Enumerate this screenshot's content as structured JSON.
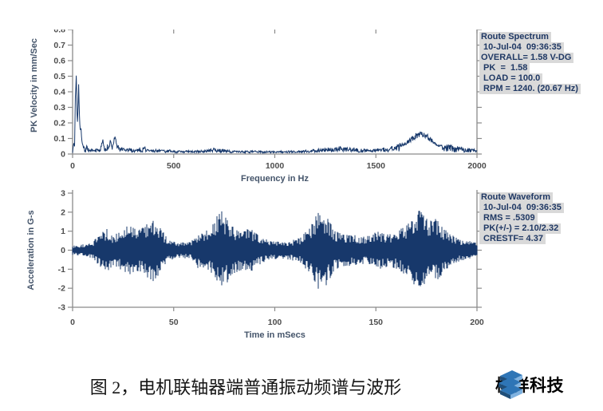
{
  "colors": {
    "line": "#17386b",
    "axis": "#8a8a8a",
    "tick_text": "#4d4d4d",
    "title_text": "#44546a",
    "legend_text": "#1f3864",
    "legend_bg": "#d9d9d9",
    "logo_dark": "#1f4e79",
    "logo_mid": "#2e75b6"
  },
  "legend_spectrum": {
    "lines": [
      "Route Spectrum",
      " 10-Jul-04  09:36:35",
      "OVERALL= 1.58 V-DG",
      " PK  =  1.58",
      " LOAD = 100.0",
      " RPM = 1240. (20.67 Hz)"
    ]
  },
  "legend_waveform": {
    "lines": [
      "Route Waveform",
      " 10-Jul-04  09:36:35",
      " RMS = .5309",
      " PK(+/-) = 2.10/2.32",
      " CRESTF= 4.37"
    ]
  },
  "caption": "图 2，电机联轴器端普通振动频谱与波形",
  "logo_text": "樽祥科技",
  "chart_data": [
    {
      "type": "line",
      "title": "Route Spectrum",
      "xlabel": "Frequency in Hz",
      "ylabel": "PK Velocity in mm/Sec",
      "xlim": [
        0,
        2000
      ],
      "ylim": [
        0,
        0.8
      ],
      "xticks": [
        0,
        500,
        1000,
        1500,
        2000
      ],
      "xtick_labels": [
        "0",
        "500",
        "1000",
        "1500",
        "2000"
      ],
      "yticks": [
        0,
        0.1,
        0.2,
        0.3,
        0.4,
        0.5,
        0.6,
        0.7,
        0.8
      ],
      "ytick_labels": [
        "0",
        "0.1",
        "0.2",
        "0.3",
        "0.4",
        "0.5",
        "0.6",
        "0.7",
        "0.8"
      ],
      "grid": false,
      "legend_position": "outside-right",
      "envelope_points": [
        [
          0,
          0.02
        ],
        [
          6,
          0.08
        ],
        [
          10,
          0.06
        ],
        [
          14,
          0.38
        ],
        [
          18,
          0.55
        ],
        [
          23,
          0.2
        ],
        [
          27,
          0.3
        ],
        [
          30,
          0.47
        ],
        [
          34,
          0.25
        ],
        [
          38,
          0.16
        ],
        [
          42,
          0.18
        ],
        [
          47,
          0.08
        ],
        [
          52,
          0.05
        ],
        [
          58,
          0.04
        ],
        [
          64,
          0.03
        ],
        [
          70,
          0.06
        ],
        [
          80,
          0.03
        ],
        [
          90,
          0.03
        ],
        [
          105,
          0.025
        ],
        [
          120,
          0.035
        ],
        [
          132,
          0.03
        ],
        [
          140,
          0.05
        ],
        [
          150,
          0.09
        ],
        [
          158,
          0.04
        ],
        [
          166,
          0.05
        ],
        [
          175,
          0.06
        ],
        [
          182,
          0.05
        ],
        [
          187,
          0.1
        ],
        [
          194,
          0.05
        ],
        [
          200,
          0.06
        ],
        [
          210,
          0.13
        ],
        [
          218,
          0.06
        ],
        [
          226,
          0.05
        ],
        [
          235,
          0.04
        ],
        [
          245,
          0.04
        ],
        [
          258,
          0.03
        ],
        [
          270,
          0.035
        ],
        [
          285,
          0.035
        ],
        [
          300,
          0.03
        ],
        [
          315,
          0.03
        ],
        [
          330,
          0.04
        ],
        [
          342,
          0.03
        ],
        [
          355,
          0.05
        ],
        [
          368,
          0.03
        ],
        [
          380,
          0.03
        ],
        [
          395,
          0.025
        ],
        [
          410,
          0.03
        ],
        [
          430,
          0.03
        ],
        [
          455,
          0.025
        ],
        [
          480,
          0.025
        ],
        [
          510,
          0.02
        ],
        [
          540,
          0.02
        ],
        [
          570,
          0.02
        ],
        [
          600,
          0.02
        ],
        [
          630,
          0.022
        ],
        [
          660,
          0.025
        ],
        [
          700,
          0.035
        ],
        [
          720,
          0.03
        ],
        [
          740,
          0.03
        ],
        [
          770,
          0.025
        ],
        [
          800,
          0.02
        ],
        [
          850,
          0.018
        ],
        [
          900,
          0.02
        ],
        [
          950,
          0.018
        ],
        [
          1000,
          0.018
        ],
        [
          1050,
          0.018
        ],
        [
          1100,
          0.02
        ],
        [
          1150,
          0.022
        ],
        [
          1200,
          0.03
        ],
        [
          1230,
          0.035
        ],
        [
          1260,
          0.04
        ],
        [
          1290,
          0.035
        ],
        [
          1320,
          0.045
        ],
        [
          1350,
          0.04
        ],
        [
          1380,
          0.04
        ],
        [
          1420,
          0.03
        ],
        [
          1450,
          0.03
        ],
        [
          1490,
          0.03
        ],
        [
          1520,
          0.035
        ],
        [
          1560,
          0.04
        ],
        [
          1600,
          0.05
        ],
        [
          1640,
          0.07
        ],
        [
          1670,
          0.1
        ],
        [
          1700,
          0.13
        ],
        [
          1720,
          0.15
        ],
        [
          1740,
          0.14
        ],
        [
          1760,
          0.12
        ],
        [
          1780,
          0.09
        ],
        [
          1800,
          0.07
        ],
        [
          1830,
          0.055
        ],
        [
          1860,
          0.05
        ],
        [
          1890,
          0.04
        ],
        [
          1920,
          0.04
        ],
        [
          1950,
          0.035
        ],
        [
          1975,
          0.03
        ],
        [
          2000,
          0.03
        ]
      ],
      "noise_floor": 0.006,
      "broadband_region": [
        1580,
        1980
      ],
      "seed": 7
    },
    {
      "type": "line",
      "title": "Route Waveform",
      "xlabel": "Time in mSecs",
      "ylabel": "Acceleration in G-s",
      "xlim": [
        0,
        200
      ],
      "ylim": [
        -3,
        3
      ],
      "xticks": [
        0,
        50,
        100,
        150,
        200
      ],
      "xtick_labels": [
        "0",
        "50",
        "100",
        "150",
        "200"
      ],
      "yticks": [
        -3,
        -2,
        -1,
        0,
        1,
        2,
        3
      ],
      "ytick_labels": [
        "-3",
        "-2",
        "-1",
        "0",
        "1",
        "2",
        "3"
      ],
      "grid": false,
      "legend_position": "outside-right",
      "envelope_points": [
        [
          0,
          0.25
        ],
        [
          5,
          0.3
        ],
        [
          10,
          0.45
        ],
        [
          14,
          0.9
        ],
        [
          17,
          1.15
        ],
        [
          20,
          0.8
        ],
        [
          24,
          1.0
        ],
        [
          28,
          1.35
        ],
        [
          32,
          1.1
        ],
        [
          36,
          1.4
        ],
        [
          40,
          1.65
        ],
        [
          44,
          1.1
        ],
        [
          48,
          0.5
        ],
        [
          53,
          0.4
        ],
        [
          58,
          0.45
        ],
        [
          62,
          0.9
        ],
        [
          66,
          1.0
        ],
        [
          70,
          1.5
        ],
        [
          73,
          2.2
        ],
        [
          76,
          1.7
        ],
        [
          80,
          1.2
        ],
        [
          84,
          1.05
        ],
        [
          88,
          1.15
        ],
        [
          92,
          0.8
        ],
        [
          97,
          0.5
        ],
        [
          103,
          0.45
        ],
        [
          108,
          0.5
        ],
        [
          113,
          0.7
        ],
        [
          118,
          1.3
        ],
        [
          122,
          2.2
        ],
        [
          126,
          1.7
        ],
        [
          130,
          1.0
        ],
        [
          135,
          0.85
        ],
        [
          140,
          0.8
        ],
        [
          145,
          0.7
        ],
        [
          150,
          1.05
        ],
        [
          154,
          0.9
        ],
        [
          158,
          0.85
        ],
        [
          163,
          1.2
        ],
        [
          168,
          1.6
        ],
        [
          172,
          2.2
        ],
        [
          176,
          1.6
        ],
        [
          180,
          1.7
        ],
        [
          184,
          1.1
        ],
        [
          188,
          0.8
        ],
        [
          192,
          0.55
        ],
        [
          196,
          0.5
        ],
        [
          200,
          0.4
        ]
      ],
      "rms": 0.5309,
      "pk_plus": 2.1,
      "pk_minus": 2.32,
      "seed": 13
    }
  ]
}
